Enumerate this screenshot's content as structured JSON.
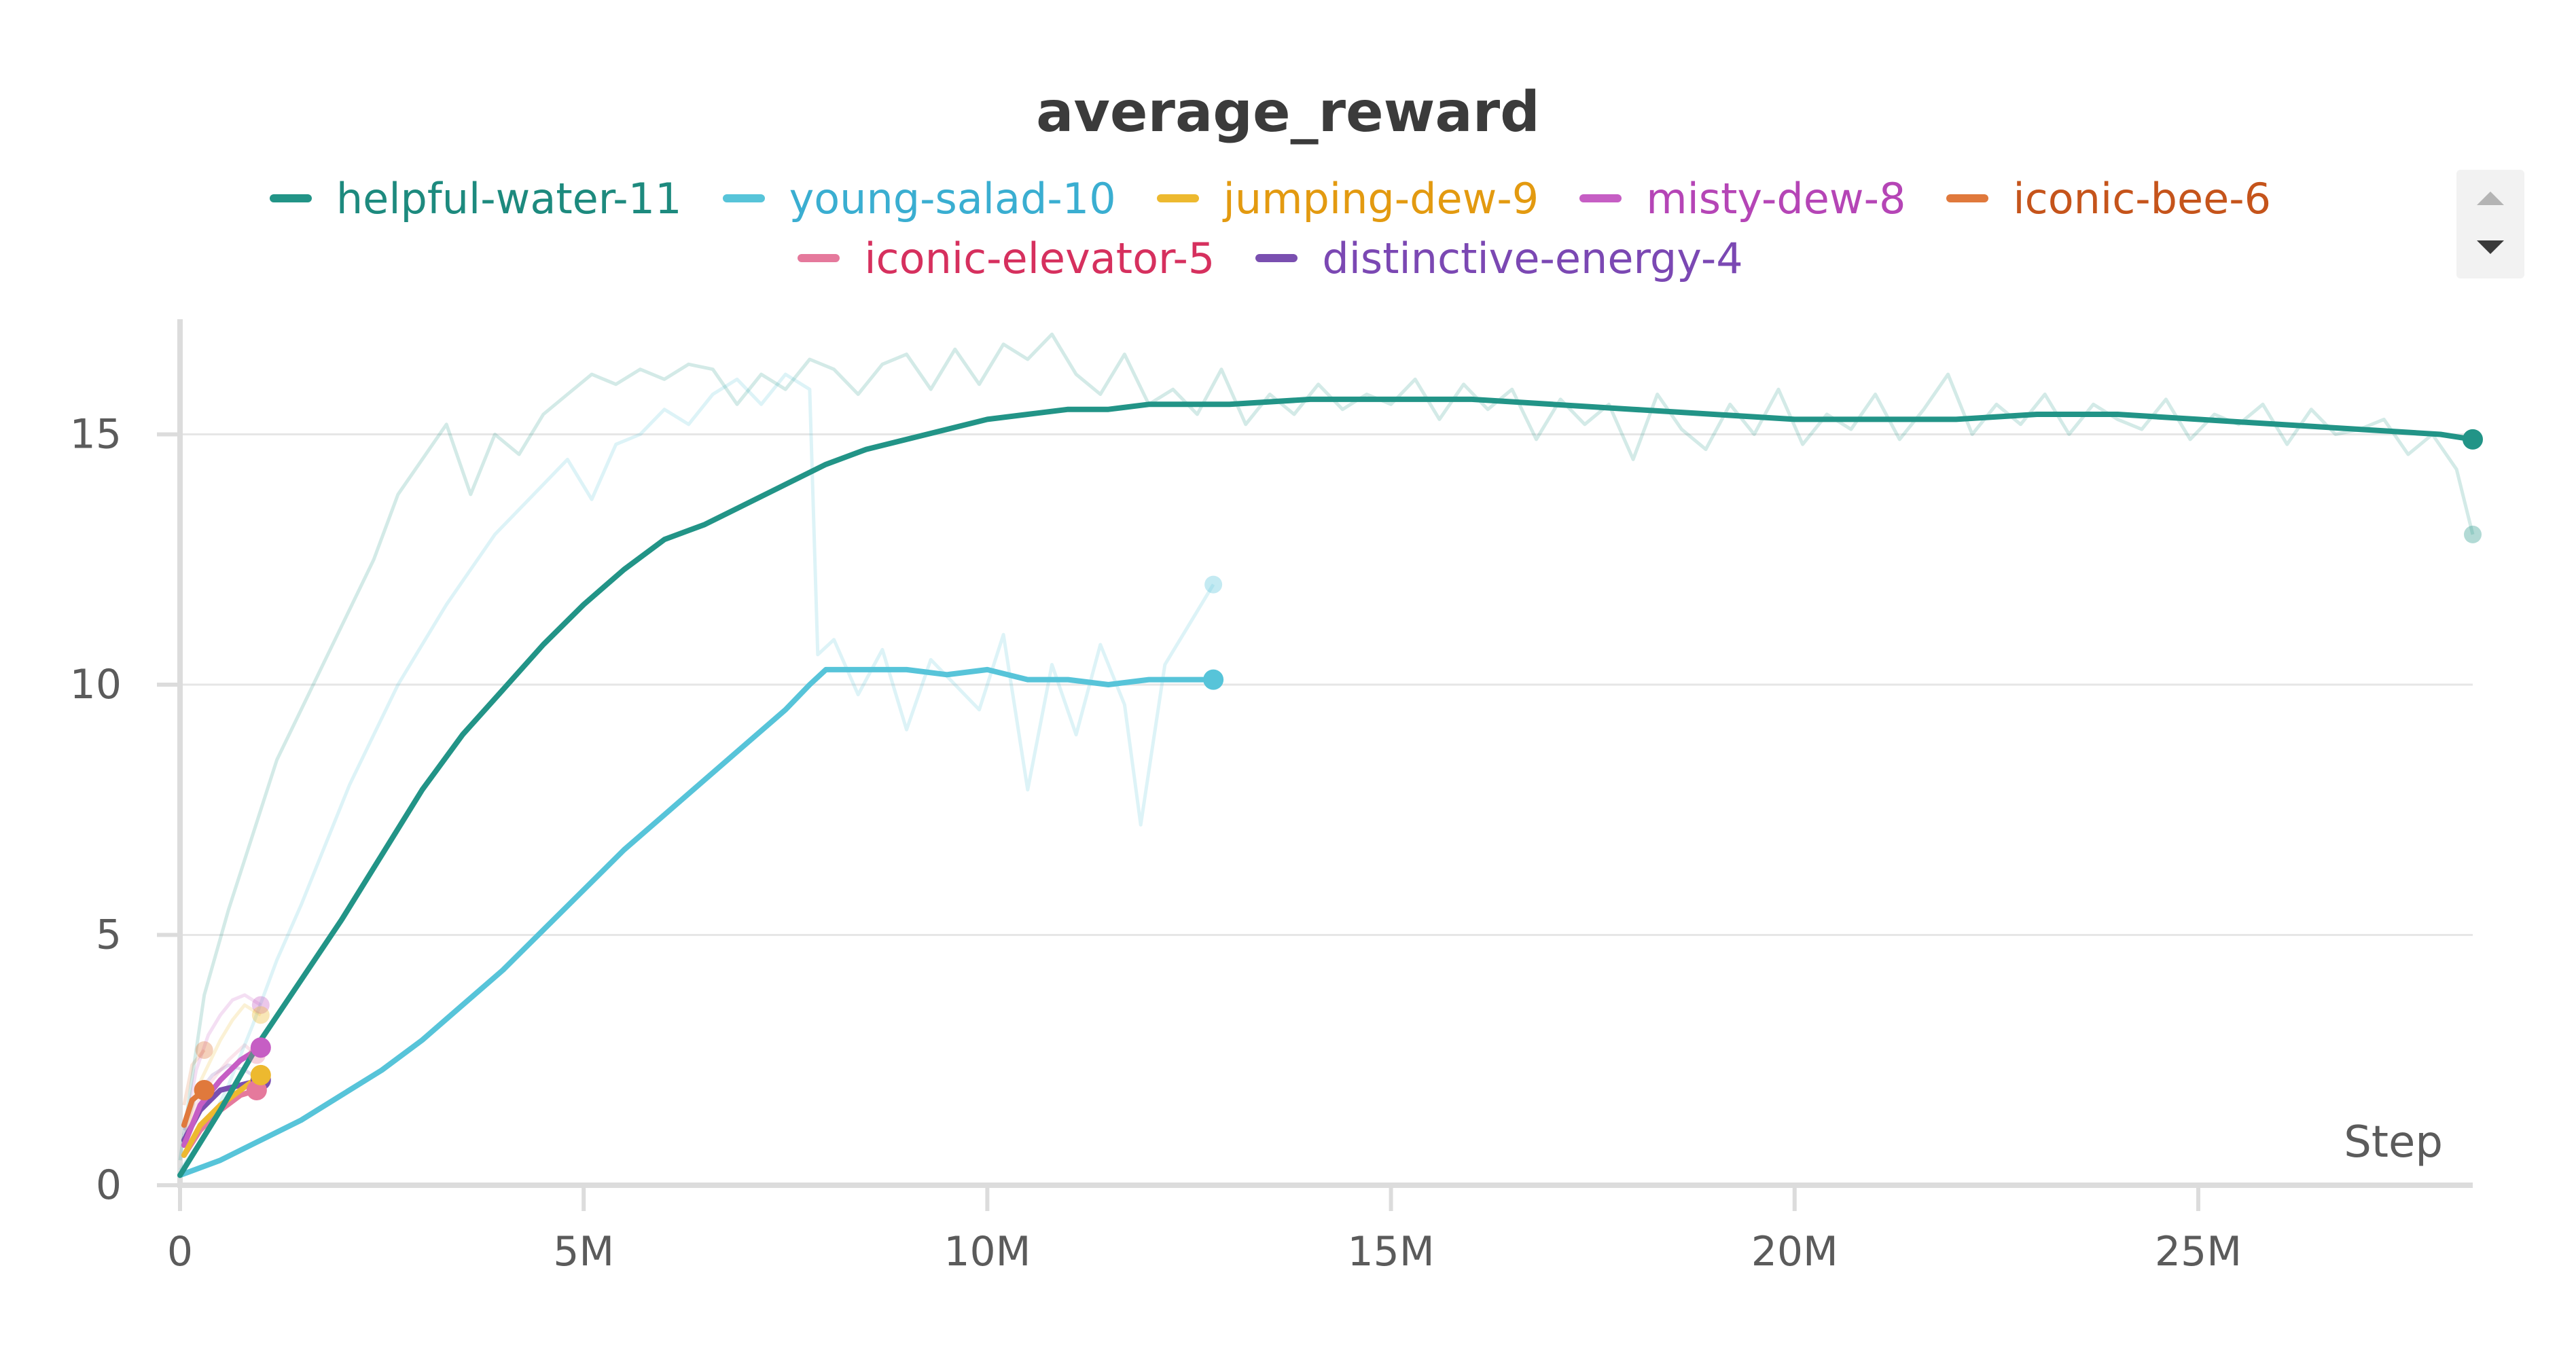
{
  "chart_data": {
    "type": "line",
    "title": "average_reward",
    "xlabel": "Step",
    "ylabel": "",
    "xlim": [
      0,
      28400000
    ],
    "ylim": [
      0,
      17.3
    ],
    "xticks": [
      0,
      5000000,
      10000000,
      15000000,
      20000000,
      25000000
    ],
    "xtick_labels": [
      "0",
      "5M",
      "10M",
      "15M",
      "20M",
      "25M"
    ],
    "yticks": [
      0,
      5,
      10,
      15
    ],
    "ytick_labels": [
      "0",
      "5",
      "10",
      "15"
    ],
    "grid": true,
    "legend_position": "top",
    "legend_rows": [
      [
        0,
        1,
        2,
        3,
        4
      ],
      [
        5,
        6
      ]
    ],
    "series": [
      {
        "name": "helpful-water-11",
        "color": "#229487",
        "label_color": "#1d8a7e",
        "x": [
          0,
          0.5,
          1,
          1.5,
          2,
          2.5,
          3,
          3.5,
          4,
          4.5,
          5,
          5.5,
          6,
          6.5,
          7,
          7.5,
          8,
          8.5,
          9,
          9.5,
          10,
          10.5,
          11,
          11.5,
          12,
          12.5,
          13,
          14,
          15,
          16,
          17,
          18,
          19,
          20,
          21,
          22,
          23,
          24,
          25,
          26,
          27,
          28,
          28.4
        ],
        "y": [
          0.2,
          1.5,
          2.9,
          4.1,
          5.3,
          6.6,
          7.9,
          9.0,
          9.9,
          10.8,
          11.6,
          12.3,
          12.9,
          13.2,
          13.6,
          14.0,
          14.4,
          14.7,
          14.9,
          15.1,
          15.3,
          15.4,
          15.5,
          15.5,
          15.6,
          15.6,
          15.6,
          15.7,
          15.7,
          15.7,
          15.6,
          15.5,
          15.4,
          15.3,
          15.3,
          15.3,
          15.4,
          15.4,
          15.3,
          15.2,
          15.1,
          15.0,
          14.9
        ],
        "raw_x": [
          0,
          0.3,
          0.6,
          0.9,
          1.2,
          1.5,
          1.8,
          2.1,
          2.4,
          2.7,
          3.0,
          3.3,
          3.6,
          3.9,
          4.2,
          4.5,
          4.8,
          5.1,
          5.4,
          5.7,
          6.0,
          6.3,
          6.6,
          6.9,
          7.2,
          7.5,
          7.8,
          8.1,
          8.4,
          8.7,
          9.0,
          9.3,
          9.6,
          9.9,
          10.2,
          10.5,
          10.8,
          11.1,
          11.4,
          11.7,
          12.0,
          12.3,
          12.6,
          12.9,
          13.2,
          13.5,
          13.8,
          14.1,
          14.4,
          14.7,
          15.0,
          15.3,
          15.6,
          15.9,
          16.2,
          16.5,
          16.8,
          17.1,
          17.4,
          17.7,
          18.0,
          18.3,
          18.6,
          18.9,
          19.2,
          19.5,
          19.8,
          20.1,
          20.4,
          20.7,
          21.0,
          21.3,
          21.6,
          21.9,
          22.2,
          22.5,
          22.8,
          23.1,
          23.4,
          23.7,
          24.0,
          24.3,
          24.6,
          24.9,
          25.2,
          25.5,
          25.8,
          26.1,
          26.4,
          26.7,
          27.0,
          27.3,
          27.6,
          27.9,
          28.2,
          28.4
        ],
        "raw_y": [
          0.5,
          3.8,
          5.5,
          7.0,
          8.5,
          9.5,
          10.5,
          11.5,
          12.5,
          13.8,
          14.5,
          15.2,
          13.8,
          15.0,
          14.6,
          15.4,
          15.8,
          16.2,
          16.0,
          16.3,
          16.1,
          16.4,
          16.3,
          15.6,
          16.2,
          15.9,
          16.5,
          16.3,
          15.8,
          16.4,
          16.6,
          15.9,
          16.7,
          16.0,
          16.8,
          16.5,
          17.0,
          16.2,
          15.8,
          16.6,
          15.6,
          15.9,
          15.4,
          16.3,
          15.2,
          15.8,
          15.4,
          16.0,
          15.5,
          15.8,
          15.6,
          16.1,
          15.3,
          16.0,
          15.5,
          15.9,
          14.9,
          15.7,
          15.2,
          15.6,
          14.5,
          15.8,
          15.1,
          14.7,
          15.6,
          15.0,
          15.9,
          14.8,
          15.4,
          15.1,
          15.8,
          14.9,
          15.5,
          16.2,
          15.0,
          15.6,
          15.2,
          15.8,
          15.0,
          15.6,
          15.3,
          15.1,
          15.7,
          14.9,
          15.4,
          15.2,
          15.6,
          14.8,
          15.5,
          15.0,
          15.1,
          15.3,
          14.6,
          15.0,
          14.3,
          13.0
        ]
      },
      {
        "name": "young-salad-10",
        "color": "#57c4d9",
        "label_color": "#3aaed1",
        "x": [
          0,
          0.5,
          1,
          1.5,
          2,
          2.5,
          3,
          3.5,
          4,
          4.5,
          5,
          5.5,
          6,
          6.5,
          7,
          7.5,
          7.8,
          8,
          8.5,
          9,
          9.5,
          10,
          10.5,
          11,
          11.5,
          12,
          12.5,
          12.8
        ],
        "y": [
          0.2,
          0.5,
          0.9,
          1.3,
          1.8,
          2.3,
          2.9,
          3.6,
          4.3,
          5.1,
          5.9,
          6.7,
          7.4,
          8.1,
          8.8,
          9.5,
          10.0,
          10.3,
          10.3,
          10.3,
          10.2,
          10.3,
          10.1,
          10.1,
          10.0,
          10.1,
          10.1,
          10.1
        ],
        "raw_x": [
          0,
          0.3,
          0.6,
          0.9,
          1.2,
          1.5,
          1.8,
          2.1,
          2.4,
          2.7,
          3.0,
          3.3,
          3.6,
          3.9,
          4.2,
          4.5,
          4.8,
          5.1,
          5.4,
          5.7,
          6.0,
          6.3,
          6.6,
          6.9,
          7.2,
          7.5,
          7.8,
          7.9,
          8.1,
          8.4,
          8.7,
          9.0,
          9.3,
          9.6,
          9.9,
          10.2,
          10.5,
          10.8,
          11.1,
          11.4,
          11.7,
          11.9,
          12.2,
          12.5,
          12.8
        ],
        "raw_y": [
          0.3,
          1.0,
          2.0,
          3.2,
          4.5,
          5.6,
          6.8,
          8.0,
          9.0,
          10.0,
          10.8,
          11.6,
          12.3,
          13.0,
          13.5,
          14.0,
          14.5,
          13.7,
          14.8,
          15.0,
          15.5,
          15.2,
          15.8,
          16.1,
          15.6,
          16.2,
          15.9,
          10.6,
          10.9,
          9.8,
          10.7,
          9.1,
          10.5,
          10.0,
          9.5,
          11.0,
          7.9,
          10.4,
          9.0,
          10.8,
          9.6,
          7.2,
          10.4,
          11.2,
          12.0
        ]
      },
      {
        "name": "jumping-dew-9",
        "color": "#edb92f",
        "label_color": "#e39a10",
        "x": [
          0.05,
          0.25,
          0.5,
          0.75,
          1.0
        ],
        "y": [
          0.6,
          1.2,
          1.6,
          1.9,
          2.2
        ],
        "raw_x": [
          0.05,
          0.2,
          0.35,
          0.5,
          0.65,
          0.8,
          1.0
        ],
        "raw_y": [
          0.8,
          1.9,
          2.4,
          2.9,
          3.3,
          3.6,
          3.4
        ]
      },
      {
        "name": "misty-dew-8",
        "color": "#c65ec4",
        "label_color": "#b545b6",
        "x": [
          0.05,
          0.25,
          0.5,
          0.75,
          1.0
        ],
        "y": [
          0.8,
          1.6,
          2.1,
          2.5,
          2.75
        ],
        "raw_x": [
          0.05,
          0.2,
          0.35,
          0.5,
          0.65,
          0.8,
          1.0
        ],
        "raw_y": [
          1.0,
          2.3,
          3.0,
          3.4,
          3.7,
          3.8,
          3.6
        ]
      },
      {
        "name": "iconic-bee-6",
        "color": "#e0793c",
        "label_color": "#c5541b",
        "x": [
          0.05,
          0.15,
          0.3
        ],
        "y": [
          1.2,
          1.7,
          1.9
        ],
        "raw_x": [
          0.05,
          0.15,
          0.3
        ],
        "raw_y": [
          1.6,
          2.4,
          2.7
        ]
      },
      {
        "name": "iconic-elevator-5",
        "color": "#e5799c",
        "label_color": "#d6305e",
        "x": [
          0.05,
          0.25,
          0.5,
          0.75,
          0.95
        ],
        "y": [
          0.6,
          1.1,
          1.5,
          1.8,
          1.9
        ],
        "raw_x": [
          0.05,
          0.2,
          0.4,
          0.6,
          0.8,
          0.95
        ],
        "raw_y": [
          0.9,
          1.6,
          2.1,
          2.5,
          2.8,
          2.6
        ]
      },
      {
        "name": "distinctive-energy-4",
        "color": "#7a4fb0",
        "label_color": "#7b48b3",
        "x": [
          0.05,
          0.25,
          0.5,
          0.75,
          1.0
        ],
        "y": [
          0.9,
          1.5,
          1.9,
          2.0,
          2.1
        ],
        "raw_x": [
          0.05,
          0.2,
          0.4,
          0.6,
          0.8,
          1.0
        ],
        "raw_y": [
          1.1,
          1.8,
          2.2,
          2.4,
          2.3,
          2.1
        ]
      }
    ]
  }
}
